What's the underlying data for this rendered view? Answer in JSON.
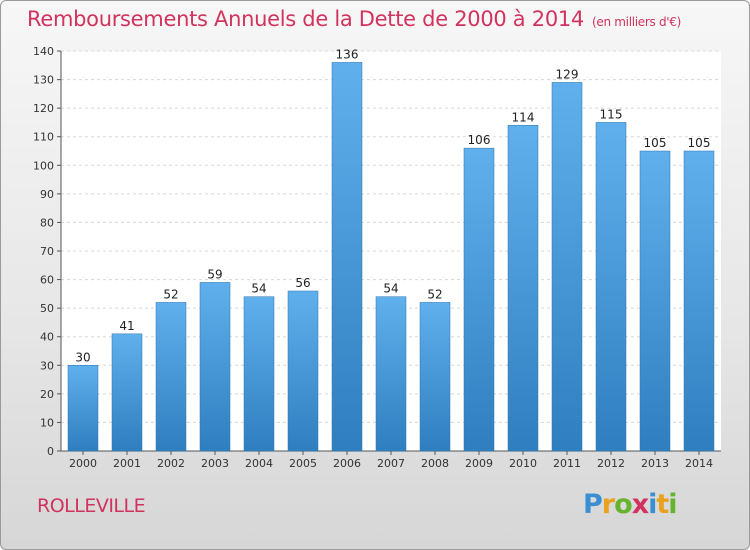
{
  "chart_data": {
    "type": "bar",
    "title": "Remboursements Annuels de la Dette de 2000 à 2014",
    "subtitle": "(en milliers d'€)",
    "categories": [
      "2000",
      "2001",
      "2002",
      "2003",
      "2004",
      "2005",
      "2006",
      "2007",
      "2008",
      "2009",
      "2010",
      "2011",
      "2012",
      "2013",
      "2014"
    ],
    "values": [
      30,
      41,
      52,
      59,
      54,
      56,
      136,
      54,
      52,
      106,
      114,
      129,
      115,
      105,
      105
    ],
    "ylim": [
      0,
      140
    ],
    "yticks": [
      0,
      10,
      20,
      30,
      40,
      50,
      60,
      70,
      80,
      90,
      100,
      110,
      120,
      130,
      140
    ],
    "grid": true,
    "bar_color": "#4a9ede",
    "title_color": "#d2325e"
  },
  "commune": "ROLLEVILLE",
  "logo_text": "Proxiti"
}
